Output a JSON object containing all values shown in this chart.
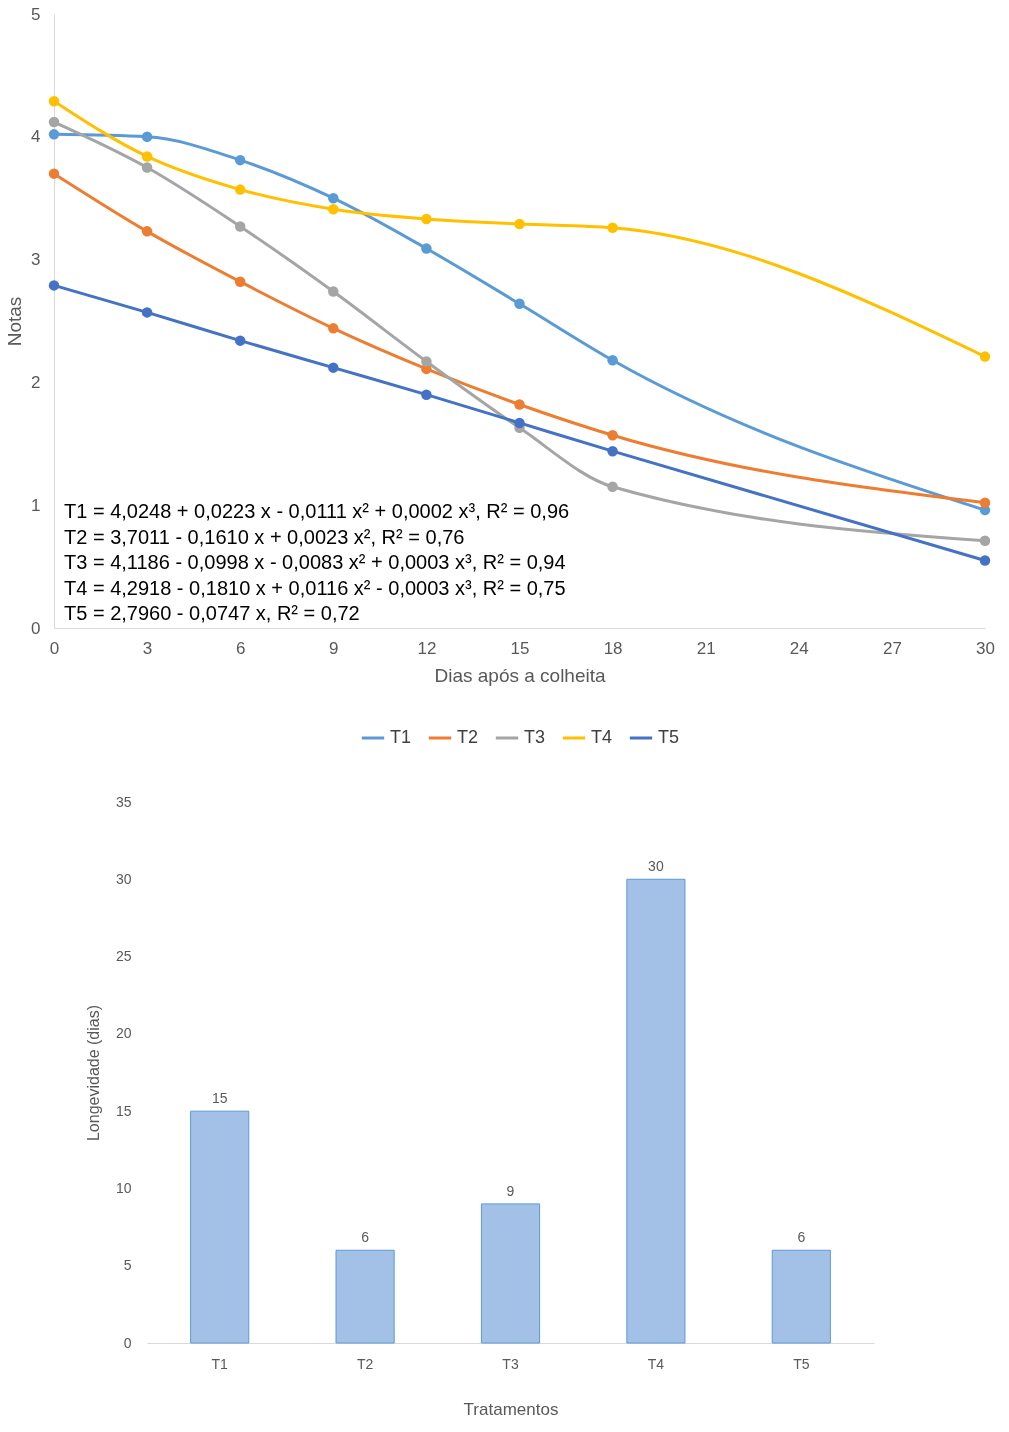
{
  "chart_data": [
    {
      "type": "line",
      "xlabel": "Dias após a colheita",
      "ylabel": "Notas",
      "x": [
        0,
        3,
        6,
        9,
        12,
        15,
        18,
        30
      ],
      "xlim": [
        0,
        30
      ],
      "xticks": [
        0,
        3,
        6,
        9,
        12,
        15,
        18,
        21,
        24,
        27,
        30
      ],
      "ylim": [
        0,
        5
      ],
      "yticks": [
        0,
        1,
        2,
        3,
        4,
        5
      ],
      "marker": "circle",
      "legend": "bottom",
      "grid": false,
      "series": [
        {
          "name": "T1",
          "color": "#5b9bd5",
          "values": [
            4.02,
            4.0,
            3.81,
            3.5,
            3.09,
            2.64,
            2.18,
            0.96
          ]
        },
        {
          "name": "T2",
          "color": "#ed7d31",
          "values": [
            3.7,
            3.23,
            2.82,
            2.44,
            2.11,
            1.82,
            1.57,
            1.02
          ]
        },
        {
          "name": "T3",
          "color": "#a5a5a5",
          "values": [
            4.12,
            3.75,
            3.27,
            2.74,
            2.17,
            1.63,
            1.15,
            0.71
          ]
        },
        {
          "name": "T4",
          "color": "#ffc000",
          "values": [
            4.29,
            3.84,
            3.57,
            3.41,
            3.33,
            3.29,
            3.26,
            2.21
          ]
        },
        {
          "name": "T5",
          "color": "#4472c4",
          "values": [
            2.79,
            2.57,
            2.34,
            2.12,
            1.9,
            1.67,
            1.44,
            0.55
          ]
        }
      ],
      "annotations": [
        "T1 = 4,0248 + 0,0223 x - 0,0111 x² + 0,0002 x³, R² = 0,96",
        "T2 = 3,7011 - 0,1610 x + 0,0023 x², R² = 0,76",
        "T3 = 4,1186 - 0,0998 x -  0,0083 x² + 0,0003 x³, R² = 0,94",
        "T4 = 4,2918 - 0,1810 x + 0,0116 x² - 0,0003 x³, R² = 0,75",
        "T5 = 2,7960 - 0,0747 x, R² = 0,72"
      ]
    },
    {
      "type": "bar",
      "xlabel": "Tratamentos",
      "ylabel": "Longevidade (dias)",
      "categories": [
        "T1",
        "T2",
        "T3",
        "T4",
        "T5"
      ],
      "values": [
        15,
        6,
        9,
        30,
        6
      ],
      "color": "#a3c1e7",
      "ylim": [
        0,
        35
      ],
      "yticks": [
        0,
        5,
        10,
        15,
        20,
        25,
        30,
        35
      ],
      "data_labels": true
    }
  ]
}
